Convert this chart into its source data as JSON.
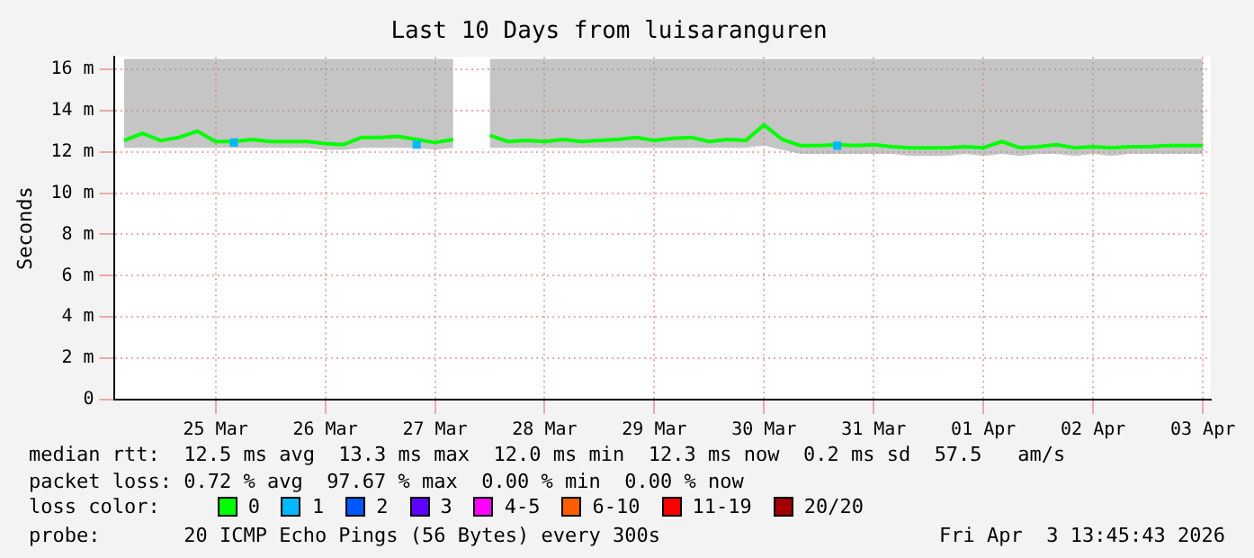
{
  "chart_data": {
    "type": "line",
    "title": "Last 10 Days from luisaranguren",
    "ylabel": "Seconds",
    "x": [
      "2026-03-24T16:00",
      "2026-03-24T20:00",
      "2026-03-25T00:00",
      "2026-03-25T04:00",
      "2026-03-25T08:00",
      "2026-03-25T12:00",
      "2026-03-25T16:00",
      "2026-03-25T20:00",
      "2026-03-26T00:00",
      "2026-03-26T04:00",
      "2026-03-26T08:00",
      "2026-03-26T12:00",
      "2026-03-26T16:00",
      "2026-03-26T20:00",
      "2026-03-27T00:00",
      "2026-03-27T04:00",
      "2026-03-27T08:00",
      "2026-03-27T12:00",
      "2026-03-27T16:00",
      "2026-03-27T20:00",
      "2026-03-28T00:00",
      "2026-03-28T04:00",
      "2026-03-28T08:00",
      "2026-03-28T12:00",
      "2026-03-28T16:00",
      "2026-03-28T20:00",
      "2026-03-29T00:00",
      "2026-03-29T04:00",
      "2026-03-29T08:00",
      "2026-03-29T12:00",
      "2026-03-29T16:00",
      "2026-03-29T20:00",
      "2026-03-30T00:00",
      "2026-03-30T04:00",
      "2026-03-30T08:00",
      "2026-03-30T12:00",
      "2026-03-30T16:00",
      "2026-03-30T20:00",
      "2026-03-31T00:00",
      "2026-03-31T04:00",
      "2026-03-31T08:00",
      "2026-03-31T12:00",
      "2026-03-31T16:00",
      "2026-03-31T20:00",
      "2026-04-01T00:00",
      "2026-04-01T04:00",
      "2026-04-01T08:00",
      "2026-04-01T12:00",
      "2026-04-01T16:00",
      "2026-04-01T20:00",
      "2026-04-02T00:00",
      "2026-04-02T04:00",
      "2026-04-02T08:00",
      "2026-04-02T12:00",
      "2026-04-02T16:00",
      "2026-04-02T20:00",
      "2026-04-03T00:00",
      "2026-04-03T04:00",
      "2026-04-03T08:00",
      "2026-04-03T12:00"
    ],
    "series": [
      {
        "name": "0",
        "color": "#00ff00",
        "values": [
          12.55,
          12.9,
          12.55,
          12.7,
          13.0,
          12.5,
          12.5,
          12.6,
          12.5,
          12.5,
          12.5,
          12.4,
          12.35,
          12.7,
          12.7,
          12.75,
          12.6,
          12.45,
          12.6,
          null,
          12.8,
          12.5,
          12.55,
          12.5,
          12.6,
          12.5,
          12.55,
          12.6,
          12.7,
          12.55,
          12.65,
          12.7,
          12.5,
          12.6,
          12.55,
          13.3,
          12.6,
          12.3,
          12.3,
          12.35,
          12.3,
          12.35,
          12.25,
          12.2,
          12.2,
          12.2,
          12.25,
          12.2,
          12.5,
          12.2,
          12.25,
          12.35,
          12.2,
          12.25,
          12.2,
          12.25,
          12.25,
          12.3,
          12.3,
          12.3
        ],
        "lower": [
          12.2,
          12.2,
          12.2,
          12.2,
          12.2,
          12.2,
          12.2,
          12.2,
          12.2,
          12.2,
          12.2,
          12.1,
          12.1,
          12.2,
          12.2,
          12.2,
          12.2,
          12.1,
          12.2,
          null,
          12.2,
          12.2,
          12.2,
          12.2,
          12.2,
          12.2,
          12.2,
          12.2,
          12.2,
          12.2,
          12.2,
          12.2,
          12.2,
          12.2,
          12.2,
          12.3,
          12.1,
          11.9,
          11.9,
          11.9,
          11.9,
          11.9,
          11.9,
          11.8,
          11.8,
          11.8,
          11.9,
          11.8,
          11.9,
          11.8,
          11.9,
          11.9,
          11.8,
          11.9,
          11.8,
          11.9,
          11.9,
          11.9,
          11.9,
          11.9
        ],
        "upper": [
          16.5,
          16.5,
          16.5,
          16.5,
          16.5,
          16.5,
          16.5,
          16.5,
          16.5,
          16.5,
          16.5,
          16.5,
          16.5,
          16.5,
          16.5,
          16.5,
          16.5,
          16.5,
          16.5,
          null,
          16.5,
          16.5,
          16.5,
          16.5,
          16.5,
          16.5,
          16.5,
          16.5,
          16.5,
          16.5,
          16.5,
          16.5,
          16.5,
          16.5,
          16.5,
          16.5,
          16.5,
          16.5,
          16.5,
          16.5,
          16.5,
          16.5,
          16.5,
          16.5,
          16.5,
          16.5,
          16.5,
          16.5,
          16.5,
          16.5,
          16.5,
          16.5,
          16.5,
          16.5,
          16.5,
          16.5,
          16.5,
          16.5,
          16.5,
          16.5
        ]
      },
      {
        "name": "1",
        "type": "scatter",
        "marker": "square",
        "color": "#00b8ff",
        "x": [
          "2026-03-25T16:00",
          "2026-03-27T08:00",
          "2026-03-31T04:00"
        ],
        "values": [
          12.45,
          12.35,
          12.3
        ]
      },
      {
        "name": "2",
        "color": "#0059ff",
        "values": [
          null,
          null,
          null,
          null,
          null,
          null,
          null,
          null,
          null,
          null,
          null,
          null,
          null,
          null,
          null,
          null,
          null,
          null,
          null,
          null,
          null,
          null,
          null,
          null,
          null,
          null,
          null,
          null,
          null,
          null,
          null,
          null,
          null,
          null,
          null,
          null,
          null,
          null,
          null,
          null,
          null,
          null,
          null,
          null,
          null,
          null,
          null,
          null,
          null,
          null,
          null,
          null,
          null,
          null,
          null,
          null,
          null,
          null,
          null,
          null
        ]
      },
      {
        "name": "3",
        "color": "#5e00ff",
        "values": [
          null,
          null,
          null,
          null,
          null,
          null,
          null,
          null,
          null,
          null,
          null,
          null,
          null,
          null,
          null,
          null,
          null,
          null,
          null,
          null,
          null,
          null,
          null,
          null,
          null,
          null,
          null,
          null,
          null,
          null,
          null,
          null,
          null,
          null,
          null,
          null,
          null,
          null,
          null,
          null,
          null,
          null,
          null,
          null,
          null,
          null,
          null,
          null,
          null,
          null,
          null,
          null,
          null,
          null,
          null,
          null,
          null,
          null,
          null,
          null
        ]
      },
      {
        "name": "4-5",
        "color": "#ff00ff",
        "values": [
          null,
          null,
          null,
          null,
          null,
          null,
          null,
          null,
          null,
          null,
          null,
          null,
          null,
          null,
          null,
          null,
          null,
          null,
          null,
          null,
          null,
          null,
          null,
          null,
          null,
          null,
          null,
          null,
          null,
          null,
          null,
          null,
          null,
          null,
          null,
          null,
          null,
          null,
          null,
          null,
          null,
          null,
          null,
          null,
          null,
          null,
          null,
          null,
          null,
          null,
          null,
          null,
          null,
          null,
          null,
          null,
          null,
          null,
          null,
          null
        ]
      },
      {
        "name": "6-10",
        "color": "#ff5e00",
        "values": [
          null,
          null,
          null,
          null,
          null,
          null,
          null,
          null,
          null,
          null,
          null,
          null,
          null,
          null,
          null,
          null,
          null,
          null,
          null,
          null,
          null,
          null,
          null,
          null,
          null,
          null,
          null,
          null,
          null,
          null,
          null,
          null,
          null,
          null,
          null,
          null,
          null,
          null,
          null,
          null,
          null,
          null,
          null,
          null,
          null,
          null,
          null,
          null,
          null,
          null,
          null,
          null,
          null,
          null,
          null,
          null,
          null,
          null,
          null,
          null
        ]
      },
      {
        "name": "11-19",
        "color": "#ff0000",
        "values": [
          null,
          null,
          null,
          null,
          null,
          null,
          null,
          null,
          null,
          null,
          null,
          null,
          null,
          null,
          null,
          null,
          null,
          null,
          null,
          null,
          null,
          null,
          null,
          null,
          null,
          null,
          null,
          null,
          null,
          null,
          null,
          null,
          null,
          null,
          null,
          null,
          null,
          null,
          null,
          null,
          null,
          null,
          null,
          null,
          null,
          null,
          null,
          null,
          null,
          null,
          null,
          null,
          null,
          null,
          null,
          null,
          null,
          null,
          null,
          null
        ]
      },
      {
        "name": "20/20",
        "color": "#a10000",
        "values": [
          null,
          null,
          null,
          null,
          null,
          null,
          null,
          null,
          null,
          null,
          null,
          null,
          null,
          null,
          null,
          null,
          null,
          null,
          null,
          null,
          null,
          null,
          null,
          null,
          null,
          null,
          null,
          null,
          null,
          null,
          null,
          null,
          null,
          null,
          null,
          null,
          null,
          null,
          null,
          null,
          null,
          null,
          null,
          null,
          null,
          null,
          null,
          null,
          null,
          null,
          null,
          null,
          null,
          null,
          null,
          null,
          null,
          null,
          null,
          null
        ]
      }
    ],
    "legend": "bottom",
    "legend_title": "loss color:",
    "marker": "none",
    "xlim": [
      "2026-03-24T13:45",
      "2026-04-03T13:45"
    ],
    "xticks": [
      {
        "value": "2026-03-25T12:00",
        "label": "25 Mar"
      },
      {
        "value": "2026-03-26T12:00",
        "label": "26 Mar"
      },
      {
        "value": "2026-03-27T12:00",
        "label": "27 Mar"
      },
      {
        "value": "2026-03-28T12:00",
        "label": "28 Mar"
      },
      {
        "value": "2026-03-29T12:00",
        "label": "29 Mar"
      },
      {
        "value": "2026-03-30T12:00",
        "label": "30 Mar"
      },
      {
        "value": "2026-03-31T12:00",
        "label": "31 Mar"
      },
      {
        "value": "2026-04-01T12:00",
        "label": "01 Apr"
      },
      {
        "value": "2026-04-02T12:00",
        "label": "02 Apr"
      },
      {
        "value": "2026-04-03T12:00",
        "label": "03 Apr"
      }
    ],
    "ylim": [
      0,
      16.6
    ],
    "yticks": [
      0,
      {
        "value": 2,
        "label": "2 m"
      },
      {
        "value": 4,
        "label": "4 m"
      },
      {
        "value": 6,
        "label": "6 m"
      },
      {
        "value": 8,
        "label": "8 m"
      },
      {
        "value": 10,
        "label": "10 m"
      },
      {
        "value": 12,
        "label": "12 m"
      },
      {
        "value": 14,
        "label": "14 m"
      },
      {
        "value": 16,
        "label": "16 m"
      }
    ],
    "grid": true,
    "annotations": [
      "median rtt:  12.5 ms avg  13.3 ms max  12.0 ms min  12.3 ms now  0.2 ms sd  57.5   am/s",
      "packet loss: 0.72 % avg  97.67 % max  0.00 % min  0.00 % now",
      "probe:       20 ICMP Echo Pings (56 Bytes) every 300s",
      "Fri Apr  3 13:45:43 2026"
    ]
  }
}
